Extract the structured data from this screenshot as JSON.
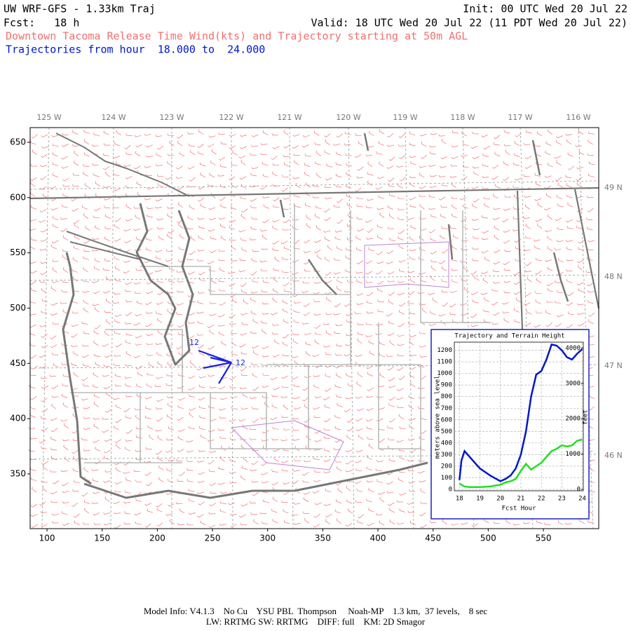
{
  "header": {
    "title": "UW WRF-GFS - 1.33km Traj",
    "init": "Init: 00 UTC Wed 20 Jul 22",
    "fcst": "Fcst:   18 h",
    "valid": "Valid: 18 UTC Wed 20 Jul 22 (11 PDT Wed 20 Jul 22)",
    "subtitle": "Downtown Tacoma Release Time Wind(kts) and Trajectory starting at 50m AGL",
    "trajectories": "Trajectories from hour  18.000 to  24.000"
  },
  "map": {
    "xlim": [
      84.7,
      600.2
    ],
    "ylim": [
      300.5,
      663.3
    ],
    "xticks": [
      100,
      150,
      200,
      250,
      300,
      350,
      400,
      450,
      500,
      550
    ],
    "yticks": [
      350,
      400,
      450,
      500,
      550,
      600,
      650
    ],
    "lon_labels": [
      "125 W",
      "124 W",
      "123 W",
      "122 W",
      "121 W",
      "120 W",
      "119 W",
      "118 W",
      "117 W",
      "116 W"
    ],
    "lat_labels": [
      "49 N",
      "48 N",
      "47 N",
      "46 N"
    ],
    "trajectory_labels": [
      "12",
      "12"
    ]
  },
  "inset": {
    "title": "Trajectory and Terrain Height",
    "xlabel": "Fcst Hour",
    "ylabel": "meters above sea level",
    "y2label": "feet",
    "xlim": [
      17.75,
      24.05
    ],
    "ylim": [
      -12,
      1270
    ],
    "y2lim": [
      -39,
      4167
    ],
    "xticks": [
      18,
      19,
      20,
      21,
      22,
      23,
      24
    ],
    "yticks": [
      0,
      100,
      200,
      300,
      400,
      500,
      600,
      700,
      800,
      900,
      1000,
      1100,
      1200
    ],
    "y2ticks": [
      0,
      1000,
      2000,
      3000,
      4000
    ],
    "grid": true,
    "x": [
      18,
      18.1,
      18.25,
      18.5,
      18.75,
      19,
      19.5,
      20,
      20.25,
      20.5,
      20.75,
      21,
      21.25,
      21.5,
      21.75,
      22,
      22.25,
      22.5,
      22.75,
      23,
      23.25,
      23.5,
      23.75,
      24
    ],
    "series": [
      {
        "name": "trajectory",
        "color": "#0018c8",
        "values": [
          80,
          250,
          330,
          280,
          230,
          180,
          120,
          70,
          90,
          120,
          180,
          300,
          500,
          800,
          990,
          1020,
          1120,
          1250,
          1240,
          1200,
          1140,
          1120,
          1170,
          1210
        ]
      },
      {
        "name": "terrain",
        "color": "#22e022",
        "values": [
          50,
          40,
          25,
          20,
          20,
          20,
          25,
          40,
          60,
          70,
          90,
          160,
          220,
          170,
          200,
          230,
          280,
          330,
          350,
          380,
          370,
          380,
          420,
          430
        ]
      }
    ]
  },
  "footer": {
    "line1": "Model Info: V4.1.3    No Cu    YSU PBL  Thompson     Noah-MP    1.3 km,  37 levels,    8 sec",
    "line2": "LW: RRTMG SW: RRTMG    DIFF: full    KM: 2D Smagor"
  }
}
